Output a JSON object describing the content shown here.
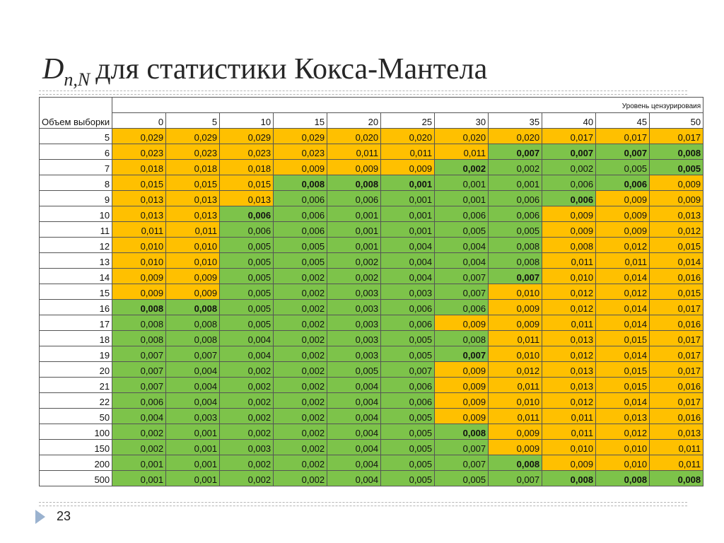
{
  "title": {
    "symbol": "D",
    "subscript": "n,N",
    "text": "для статистики Кокса-Мантела"
  },
  "table": {
    "corner_label": "Объем выборки",
    "group_label": "Уровень цензурироваия",
    "levels": [
      "0",
      "5",
      "10",
      "15",
      "20",
      "25",
      "30",
      "35",
      "40",
      "45",
      "50"
    ],
    "rows": [
      {
        "n": "5",
        "v": [
          "0,029",
          "0,029",
          "0,029",
          "0,029",
          "0,020",
          "0,020",
          "0,020",
          "0,020",
          "0,017",
          "0,017",
          "0,017"
        ],
        "c": [
          "o",
          "o",
          "o",
          "o",
          "o",
          "o",
          "o",
          "o",
          "o",
          "o",
          "o"
        ],
        "b": []
      },
      {
        "n": "6",
        "v": [
          "0,023",
          "0,023",
          "0,023",
          "0,023",
          "0,011",
          "0,011",
          "0,011",
          "0,007",
          "0,007",
          "0,007",
          "0,008"
        ],
        "c": [
          "o",
          "o",
          "o",
          "o",
          "o",
          "o",
          "o",
          "g",
          "g",
          "g",
          "g"
        ],
        "b": [
          7,
          8,
          9,
          10
        ]
      },
      {
        "n": "7",
        "v": [
          "0,018",
          "0,018",
          "0,018",
          "0,009",
          "0,009",
          "0,009",
          "0,002",
          "0,002",
          "0,002",
          "0,005",
          "0,005"
        ],
        "c": [
          "o",
          "o",
          "o",
          "o",
          "o",
          "o",
          "g",
          "g",
          "g",
          "g",
          "g"
        ],
        "b": [
          6,
          10
        ]
      },
      {
        "n": "8",
        "v": [
          "0,015",
          "0,015",
          "0,015",
          "0,008",
          "0,008",
          "0,001",
          "0,001",
          "0,001",
          "0,006",
          "0,006",
          "0,009"
        ],
        "c": [
          "o",
          "o",
          "o",
          "g",
          "g",
          "g",
          "g",
          "g",
          "g",
          "g",
          "o"
        ],
        "b": [
          3,
          4,
          5,
          9
        ]
      },
      {
        "n": "9",
        "v": [
          "0,013",
          "0,013",
          "0,013",
          "0,006",
          "0,006",
          "0,001",
          "0,001",
          "0,006",
          "0,006",
          "0,009",
          "0,009"
        ],
        "c": [
          "o",
          "o",
          "o",
          "g",
          "g",
          "g",
          "g",
          "g",
          "g",
          "o",
          "o"
        ],
        "b": [
          8
        ]
      },
      {
        "n": "10",
        "v": [
          "0,013",
          "0,013",
          "0,006",
          "0,006",
          "0,001",
          "0,001",
          "0,006",
          "0,006",
          "0,009",
          "0,009",
          "0,013"
        ],
        "c": [
          "o",
          "o",
          "g",
          "g",
          "g",
          "g",
          "g",
          "g",
          "o",
          "o",
          "o"
        ],
        "b": [
          2
        ]
      },
      {
        "n": "11",
        "v": [
          "0,011",
          "0,011",
          "0,006",
          "0,006",
          "0,001",
          "0,001",
          "0,005",
          "0,005",
          "0,009",
          "0,009",
          "0,012"
        ],
        "c": [
          "o",
          "o",
          "g",
          "g",
          "g",
          "g",
          "g",
          "g",
          "o",
          "o",
          "o"
        ],
        "b": []
      },
      {
        "n": "12",
        "v": [
          "0,010",
          "0,010",
          "0,005",
          "0,005",
          "0,001",
          "0,004",
          "0,004",
          "0,008",
          "0,008",
          "0,012",
          "0,015"
        ],
        "c": [
          "o",
          "o",
          "g",
          "g",
          "g",
          "g",
          "g",
          "g",
          "o",
          "o",
          "o"
        ],
        "b": []
      },
      {
        "n": "13",
        "v": [
          "0,010",
          "0,010",
          "0,005",
          "0,005",
          "0,002",
          "0,004",
          "0,004",
          "0,008",
          "0,011",
          "0,011",
          "0,014"
        ],
        "c": [
          "o",
          "o",
          "g",
          "g",
          "g",
          "g",
          "g",
          "g",
          "o",
          "o",
          "o"
        ],
        "b": []
      },
      {
        "n": "14",
        "v": [
          "0,009",
          "0,009",
          "0,005",
          "0,002",
          "0,002",
          "0,004",
          "0,007",
          "0,007",
          "0,010",
          "0,014",
          "0,016"
        ],
        "c": [
          "o",
          "o",
          "g",
          "g",
          "g",
          "g",
          "g",
          "g",
          "o",
          "o",
          "o"
        ],
        "b": [
          7
        ]
      },
      {
        "n": "15",
        "v": [
          "0,009",
          "0,009",
          "0,005",
          "0,002",
          "0,003",
          "0,003",
          "0,007",
          "0,010",
          "0,012",
          "0,012",
          "0,015"
        ],
        "c": [
          "o",
          "o",
          "g",
          "g",
          "g",
          "g",
          "g",
          "o",
          "o",
          "o",
          "o"
        ],
        "b": []
      },
      {
        "n": "16",
        "v": [
          "0,008",
          "0,008",
          "0,005",
          "0,002",
          "0,003",
          "0,006",
          "0,006",
          "0,009",
          "0,012",
          "0,014",
          "0,017"
        ],
        "c": [
          "g",
          "g",
          "g",
          "g",
          "g",
          "g",
          "g",
          "o",
          "o",
          "o",
          "o"
        ],
        "b": [
          0,
          1
        ]
      },
      {
        "n": "17",
        "v": [
          "0,008",
          "0,008",
          "0,005",
          "0,002",
          "0,003",
          "0,006",
          "0,009",
          "0,009",
          "0,011",
          "0,014",
          "0,016"
        ],
        "c": [
          "g",
          "g",
          "g",
          "g",
          "g",
          "g",
          "o",
          "o",
          "o",
          "o",
          "o"
        ],
        "b": []
      },
      {
        "n": "18",
        "v": [
          "0,008",
          "0,008",
          "0,004",
          "0,002",
          "0,003",
          "0,005",
          "0,008",
          "0,011",
          "0,013",
          "0,015",
          "0,017"
        ],
        "c": [
          "g",
          "g",
          "g",
          "g",
          "g",
          "g",
          "g",
          "o",
          "o",
          "o",
          "o"
        ],
        "b": []
      },
      {
        "n": "19",
        "v": [
          "0,007",
          "0,007",
          "0,004",
          "0,002",
          "0,003",
          "0,005",
          "0,007",
          "0,010",
          "0,012",
          "0,014",
          "0,017"
        ],
        "c": [
          "g",
          "g",
          "g",
          "g",
          "g",
          "g",
          "g",
          "o",
          "o",
          "o",
          "o"
        ],
        "b": [
          6
        ]
      },
      {
        "n": "20",
        "v": [
          "0,007",
          "0,004",
          "0,002",
          "0,002",
          "0,005",
          "0,007",
          "0,009",
          "0,012",
          "0,013",
          "0,015",
          "0,017"
        ],
        "c": [
          "g",
          "g",
          "g",
          "g",
          "g",
          "g",
          "o",
          "o",
          "o",
          "o",
          "o"
        ],
        "b": []
      },
      {
        "n": "21",
        "v": [
          "0,007",
          "0,004",
          "0,002",
          "0,002",
          "0,004",
          "0,006",
          "0,009",
          "0,011",
          "0,013",
          "0,015",
          "0,016"
        ],
        "c": [
          "g",
          "g",
          "g",
          "g",
          "g",
          "g",
          "o",
          "o",
          "o",
          "o",
          "o"
        ],
        "b": []
      },
      {
        "n": "22",
        "v": [
          "0,006",
          "0,004",
          "0,002",
          "0,002",
          "0,004",
          "0,006",
          "0,009",
          "0,010",
          "0,012",
          "0,014",
          "0,017"
        ],
        "c": [
          "g",
          "g",
          "g",
          "g",
          "g",
          "g",
          "o",
          "o",
          "o",
          "o",
          "o"
        ],
        "b": []
      },
      {
        "n": "50",
        "v": [
          "0,004",
          "0,003",
          "0,002",
          "0,002",
          "0,004",
          "0,005",
          "0,009",
          "0,011",
          "0,011",
          "0,013",
          "0,016"
        ],
        "c": [
          "g",
          "g",
          "g",
          "g",
          "g",
          "g",
          "o",
          "o",
          "o",
          "o",
          "o"
        ],
        "b": []
      },
      {
        "n": "100",
        "v": [
          "0,002",
          "0,001",
          "0,002",
          "0,002",
          "0,004",
          "0,005",
          "0,008",
          "0,009",
          "0,011",
          "0,012",
          "0,013"
        ],
        "c": [
          "g",
          "g",
          "g",
          "g",
          "g",
          "g",
          "g",
          "o",
          "o",
          "o",
          "o"
        ],
        "b": [
          6
        ]
      },
      {
        "n": "150",
        "v": [
          "0,002",
          "0,001",
          "0,003",
          "0,002",
          "0,004",
          "0,005",
          "0,007",
          "0,009",
          "0,010",
          "0,010",
          "0,011"
        ],
        "c": [
          "g",
          "g",
          "g",
          "g",
          "g",
          "g",
          "g",
          "o",
          "o",
          "o",
          "o"
        ],
        "b": []
      },
      {
        "n": "200",
        "v": [
          "0,001",
          "0,001",
          "0,002",
          "0,002",
          "0,004",
          "0,005",
          "0,007",
          "0,008",
          "0,009",
          "0,010",
          "0,011"
        ],
        "c": [
          "g",
          "g",
          "g",
          "g",
          "g",
          "g",
          "g",
          "g",
          "o",
          "o",
          "o"
        ],
        "b": [
          7
        ]
      },
      {
        "n": "500",
        "v": [
          "0,001",
          "0,001",
          "0,002",
          "0,002",
          "0,004",
          "0,005",
          "0,005",
          "0,007",
          "0,008",
          "0,008",
          "0,008"
        ],
        "c": [
          "g",
          "g",
          "g",
          "g",
          "g",
          "g",
          "g",
          "g",
          "g",
          "g",
          "g"
        ],
        "b": [
          8,
          9,
          10
        ]
      }
    ]
  },
  "colors": {
    "orange": "#ffc000",
    "green": "#7dc34a"
  },
  "footer": {
    "icon": "triangle-bullet-icon",
    "page_number": "23"
  }
}
